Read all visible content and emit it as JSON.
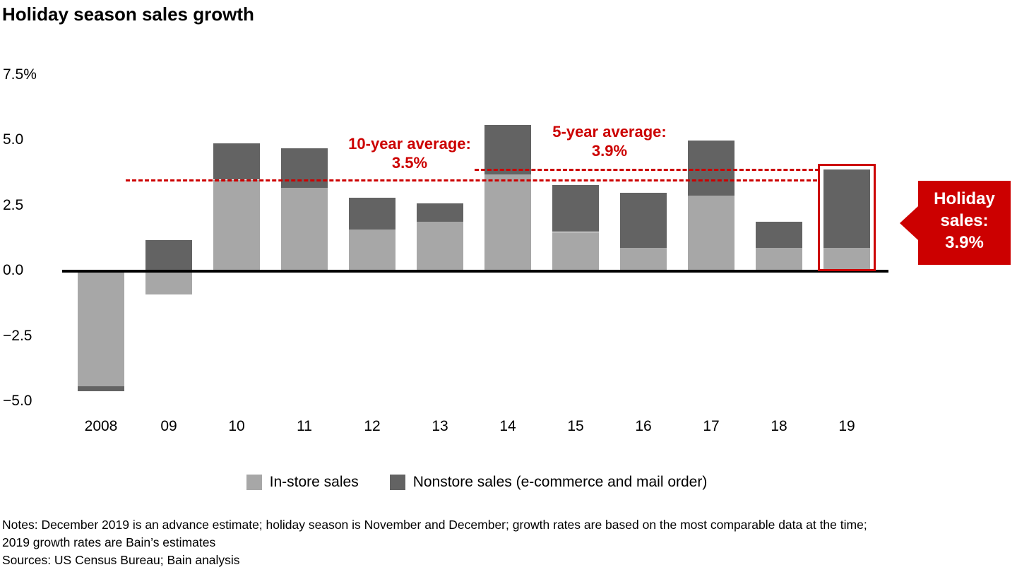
{
  "title": "Holiday season sales growth",
  "colors": {
    "in_store_gray": "#a7a7a7",
    "nonstore_gray": "#636363",
    "accent_red": "#cc0000",
    "axis_black": "#000000"
  },
  "chart_data": {
    "type": "bar",
    "stacked": true,
    "title": "Holiday season sales growth",
    "xlabel": "",
    "ylabel": "",
    "grid": false,
    "legend_position": "bottom",
    "categories": [
      "2008",
      "09",
      "10",
      "11",
      "12",
      "13",
      "14",
      "15",
      "16",
      "17",
      "18",
      "19"
    ],
    "series": [
      {
        "name": "In-store sales",
        "color": "#a7a7a7",
        "values": [
          -4.4,
          -0.9,
          3.5,
          3.2,
          1.6,
          1.9,
          3.7,
          1.5,
          0.9,
          2.9,
          0.9,
          0.9
        ]
      },
      {
        "name": "Nonstore sales (e-commerce and mail order)",
        "color": "#636363",
        "values": [
          -0.2,
          1.2,
          1.4,
          1.5,
          1.2,
          0.7,
          1.9,
          1.8,
          2.1,
          2.1,
          1.0,
          3.0
        ]
      }
    ],
    "bar_totals": [
      -4.6,
      0.3,
      4.9,
      4.7,
      2.8,
      2.6,
      5.6,
      3.3,
      3.0,
      5.0,
      1.9,
      3.9
    ],
    "y_axis": {
      "unit": "%",
      "tick_values": [
        7.5,
        5.0,
        2.5,
        0.0,
        -2.5,
        -5.0
      ],
      "tick_labels": [
        "7.5%",
        "5.0",
        "2.5",
        "0.0",
        "−2.5",
        "−5.0"
      ],
      "ylim": [
        -5.5,
        7.5
      ]
    },
    "reference_lines": [
      {
        "id": "ten_year",
        "label": "10-year average:",
        "value_label": "3.5%",
        "value": 3.5
      },
      {
        "id": "five_year",
        "label": "5-year average:",
        "value_label": "3.9%",
        "value": 3.9
      }
    ],
    "highlight": {
      "category": "19",
      "total": 3.9
    },
    "callout": {
      "lines": [
        "Holiday",
        "sales:",
        "3.9%"
      ],
      "value": "3.9%"
    }
  },
  "annotations": {
    "ten_year_label": "10-year average:",
    "ten_year_value": "3.5%",
    "five_year_label": "5-year average:",
    "five_year_value": "3.9%"
  },
  "legend": {
    "items": [
      {
        "label": "In-store sales",
        "color": "#a7a7a7"
      },
      {
        "label": "Nonstore sales (e-commerce and mail order)",
        "color": "#636363"
      }
    ]
  },
  "notes": "Notes: December 2019 is an advance estimate; holiday season is November and December; growth rates are based on the most comparable data at the time;\n2019 growth rates are Bain’s estimates",
  "sources": "Sources: US Census Bureau; Bain analysis"
}
